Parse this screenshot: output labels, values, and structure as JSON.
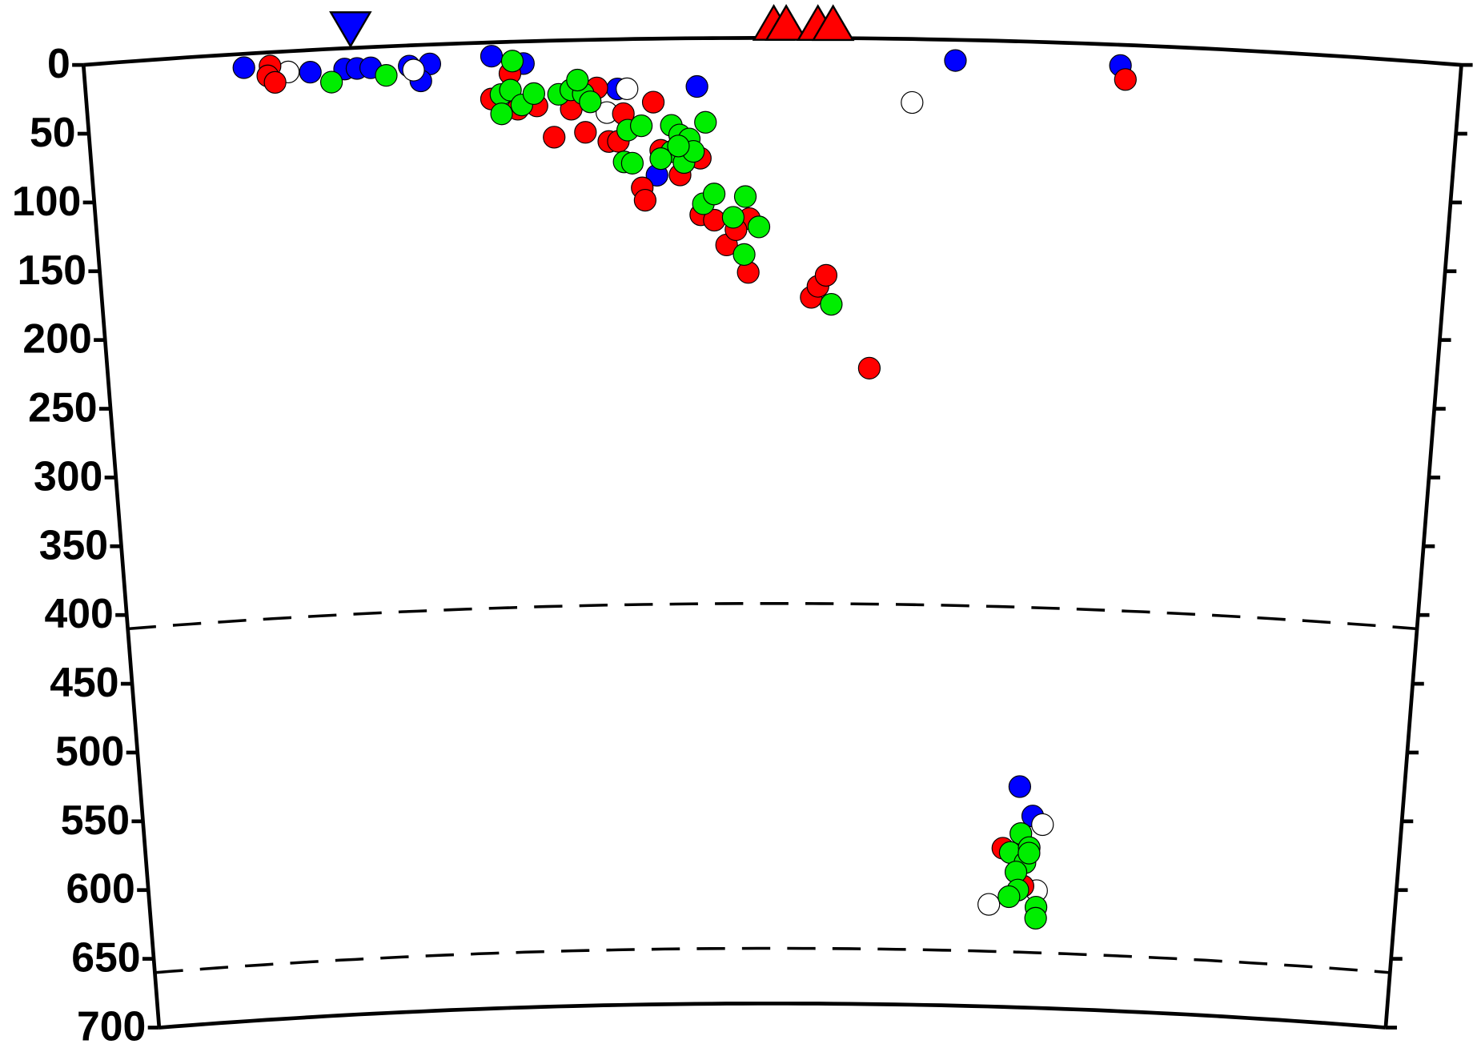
{
  "chart_data": {
    "type": "scatter",
    "xlim": [
      0,
      1000
    ],
    "ylim": [
      0,
      700
    ],
    "yticks": [
      0,
      50,
      100,
      150,
      200,
      250,
      300,
      350,
      400,
      450,
      500,
      550,
      600,
      650,
      700
    ],
    "dashed_depths": [
      410,
      660
    ],
    "markers": [
      {
        "shape": "triangle-down",
        "color": "#0000ff",
        "x": [
          194
        ]
      },
      {
        "shape": "triangle-up",
        "color": "#ff0000",
        "x": [
          501,
          510,
          533,
          544
        ]
      }
    ],
    "series": [
      {
        "color": "#0000ff",
        "x": [
          116,
          164,
          189,
          198,
          208,
          236,
          251,
          244,
          296,
          319,
          387,
          445,
          415,
          633,
          753,
          696,
          707
        ],
        "values": [
          10,
          16,
          15,
          15,
          15,
          15,
          14,
          26,
          10,
          16,
          36,
          35,
          99,
          15,
          15,
          540,
          561
        ]
      },
      {
        "color": "#ffffff",
        "x": [
          148,
          239,
          394,
          379,
          602,
          715,
          674,
          712
        ],
        "values": [
          15,
          18,
          36,
          53,
          46,
          567,
          626,
          615
        ]
      },
      {
        "color": "#ff0000",
        "x": [
          135,
          133,
          138,
          295,
          309,
          314,
          328,
          340,
          353,
          363,
          372,
          380,
          387,
          391,
          413,
          418,
          404,
          406,
          432,
          447,
          447,
          457,
          483,
          466,
          473,
          482,
          529,
          534,
          540,
          573,
          757,
          684,
          701
        ],
        "values": [
          10,
          17,
          22,
          41,
          23,
          49,
          47,
          70,
          50,
          67,
          35,
          74,
          74,
          54,
          46,
          81,
          108,
          117,
          99,
          87,
          128,
          132,
          131,
          150,
          139,
          170,
          188,
          180,
          172,
          239,
          25,
          585,
          612
        ]
      },
      {
        "color": "#00ee00",
        "x": [
          179,
          219,
          311,
          302,
          309,
          317,
          326,
          302,
          344,
          353,
          362,
          358,
          367,
          394,
          404,
          391,
          397,
          426,
          432,
          439,
          426,
          435,
          418,
          451,
          442,
          431,
          449,
          457,
          471,
          480,
          490,
          479,
          544,
          698,
          690,
          702,
          695,
          705,
          697,
          690,
          712,
          712,
          705
        ],
        "values": [
          24,
          21,
          14,
          38,
          35,
          46,
          38,
          52,
          39,
          36,
          39,
          29,
          45,
          66,
          63,
          89,
          90,
          63,
          70,
          73,
          82,
          90,
          87,
          61,
          82,
          78,
          120,
          113,
          130,
          115,
          137,
          157,
          193,
          574,
          588,
          595,
          602,
          584,
          615,
          620,
          627,
          635,
          588
        ]
      }
    ]
  }
}
